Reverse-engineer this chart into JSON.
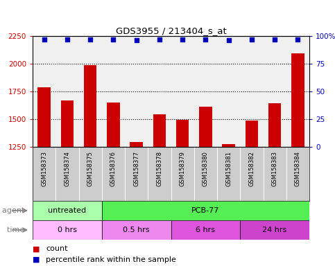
{
  "title": "GDS3955 / 213404_s_at",
  "samples": [
    "GSM158373",
    "GSM158374",
    "GSM158375",
    "GSM158376",
    "GSM158377",
    "GSM158378",
    "GSM158379",
    "GSM158380",
    "GSM158381",
    "GSM158382",
    "GSM158383",
    "GSM158384"
  ],
  "counts": [
    1790,
    1670,
    1990,
    1650,
    1295,
    1545,
    1495,
    1615,
    1275,
    1490,
    1645,
    2095
  ],
  "percentile_ranks": [
    97,
    97,
    97,
    97,
    96,
    97,
    97,
    97,
    96,
    97,
    97,
    97
  ],
  "bar_color": "#cc0000",
  "dot_color": "#0000bb",
  "ylim_left": [
    1250,
    2250
  ],
  "ylim_right": [
    0,
    100
  ],
  "yticks_left": [
    1250,
    1500,
    1750,
    2000,
    2250
  ],
  "yticks_right": [
    0,
    25,
    50,
    75,
    100
  ],
  "dotted_lines": [
    1500,
    1750,
    2000
  ],
  "agent_untreated_color": "#aaffaa",
  "agent_pcb77_color": "#55ee55",
  "time_0_color": "#ffbbff",
  "time_05_color": "#ee88ee",
  "time_6_color": "#dd55dd",
  "time_24_color": "#cc44cc",
  "sample_box_color": "#cccccc",
  "chart_bg_color": "#f0f0f0",
  "background_color": "#ffffff",
  "legend_count_color": "#cc0000",
  "legend_dot_color": "#0000bb"
}
